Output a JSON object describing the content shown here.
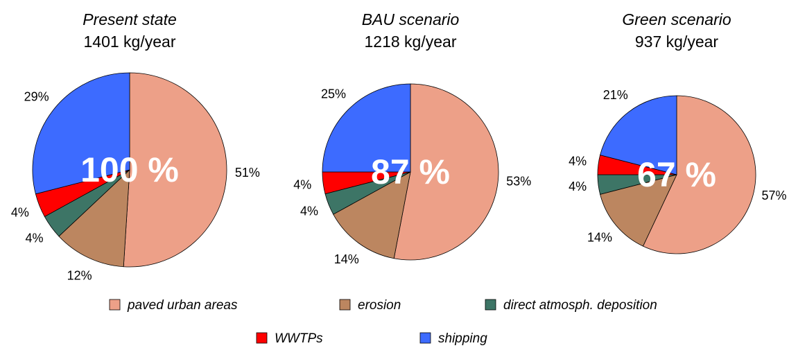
{
  "chart_data": [
    {
      "type": "pie",
      "title": "Present state",
      "subtitle": "1401 kg/year",
      "annotation": "100 %",
      "categories": [
        "paved urban areas",
        "erosion",
        "direct atmosph. deposition",
        "WWTPs",
        "shipping"
      ],
      "colors": [
        "#eda088",
        "#bc8660",
        "#3d7566",
        "#ff0000",
        "#3d6bff"
      ],
      "values": [
        51,
        12,
        4,
        4,
        29
      ],
      "value_labels": [
        "51%",
        "12%",
        "4%",
        "4%",
        "29%"
      ]
    },
    {
      "type": "pie",
      "title": "BAU scenario",
      "subtitle": "1218 kg/year",
      "annotation": "87 %",
      "categories": [
        "paved urban areas",
        "erosion",
        "direct atmosph. deposition",
        "WWTPs",
        "shipping"
      ],
      "colors": [
        "#eda088",
        "#bc8660",
        "#3d7566",
        "#ff0000",
        "#3d6bff"
      ],
      "values": [
        53,
        14,
        4,
        4,
        25
      ],
      "value_labels": [
        "53%",
        "14%",
        "4%",
        "4%",
        "25%"
      ]
    },
    {
      "type": "pie",
      "title": "Green scenario",
      "subtitle": "937 kg/year",
      "annotation": "67 %",
      "categories": [
        "paved urban areas",
        "erosion",
        "direct atmosph. deposition",
        "WWTPs",
        "shipping"
      ],
      "colors": [
        "#eda088",
        "#bc8660",
        "#3d7566",
        "#ff0000",
        "#3d6bff"
      ],
      "values": [
        57,
        14,
        4,
        4,
        21
      ],
      "value_labels": [
        "57%",
        "14%",
        "4%",
        "4%",
        "21%"
      ]
    }
  ]
}
